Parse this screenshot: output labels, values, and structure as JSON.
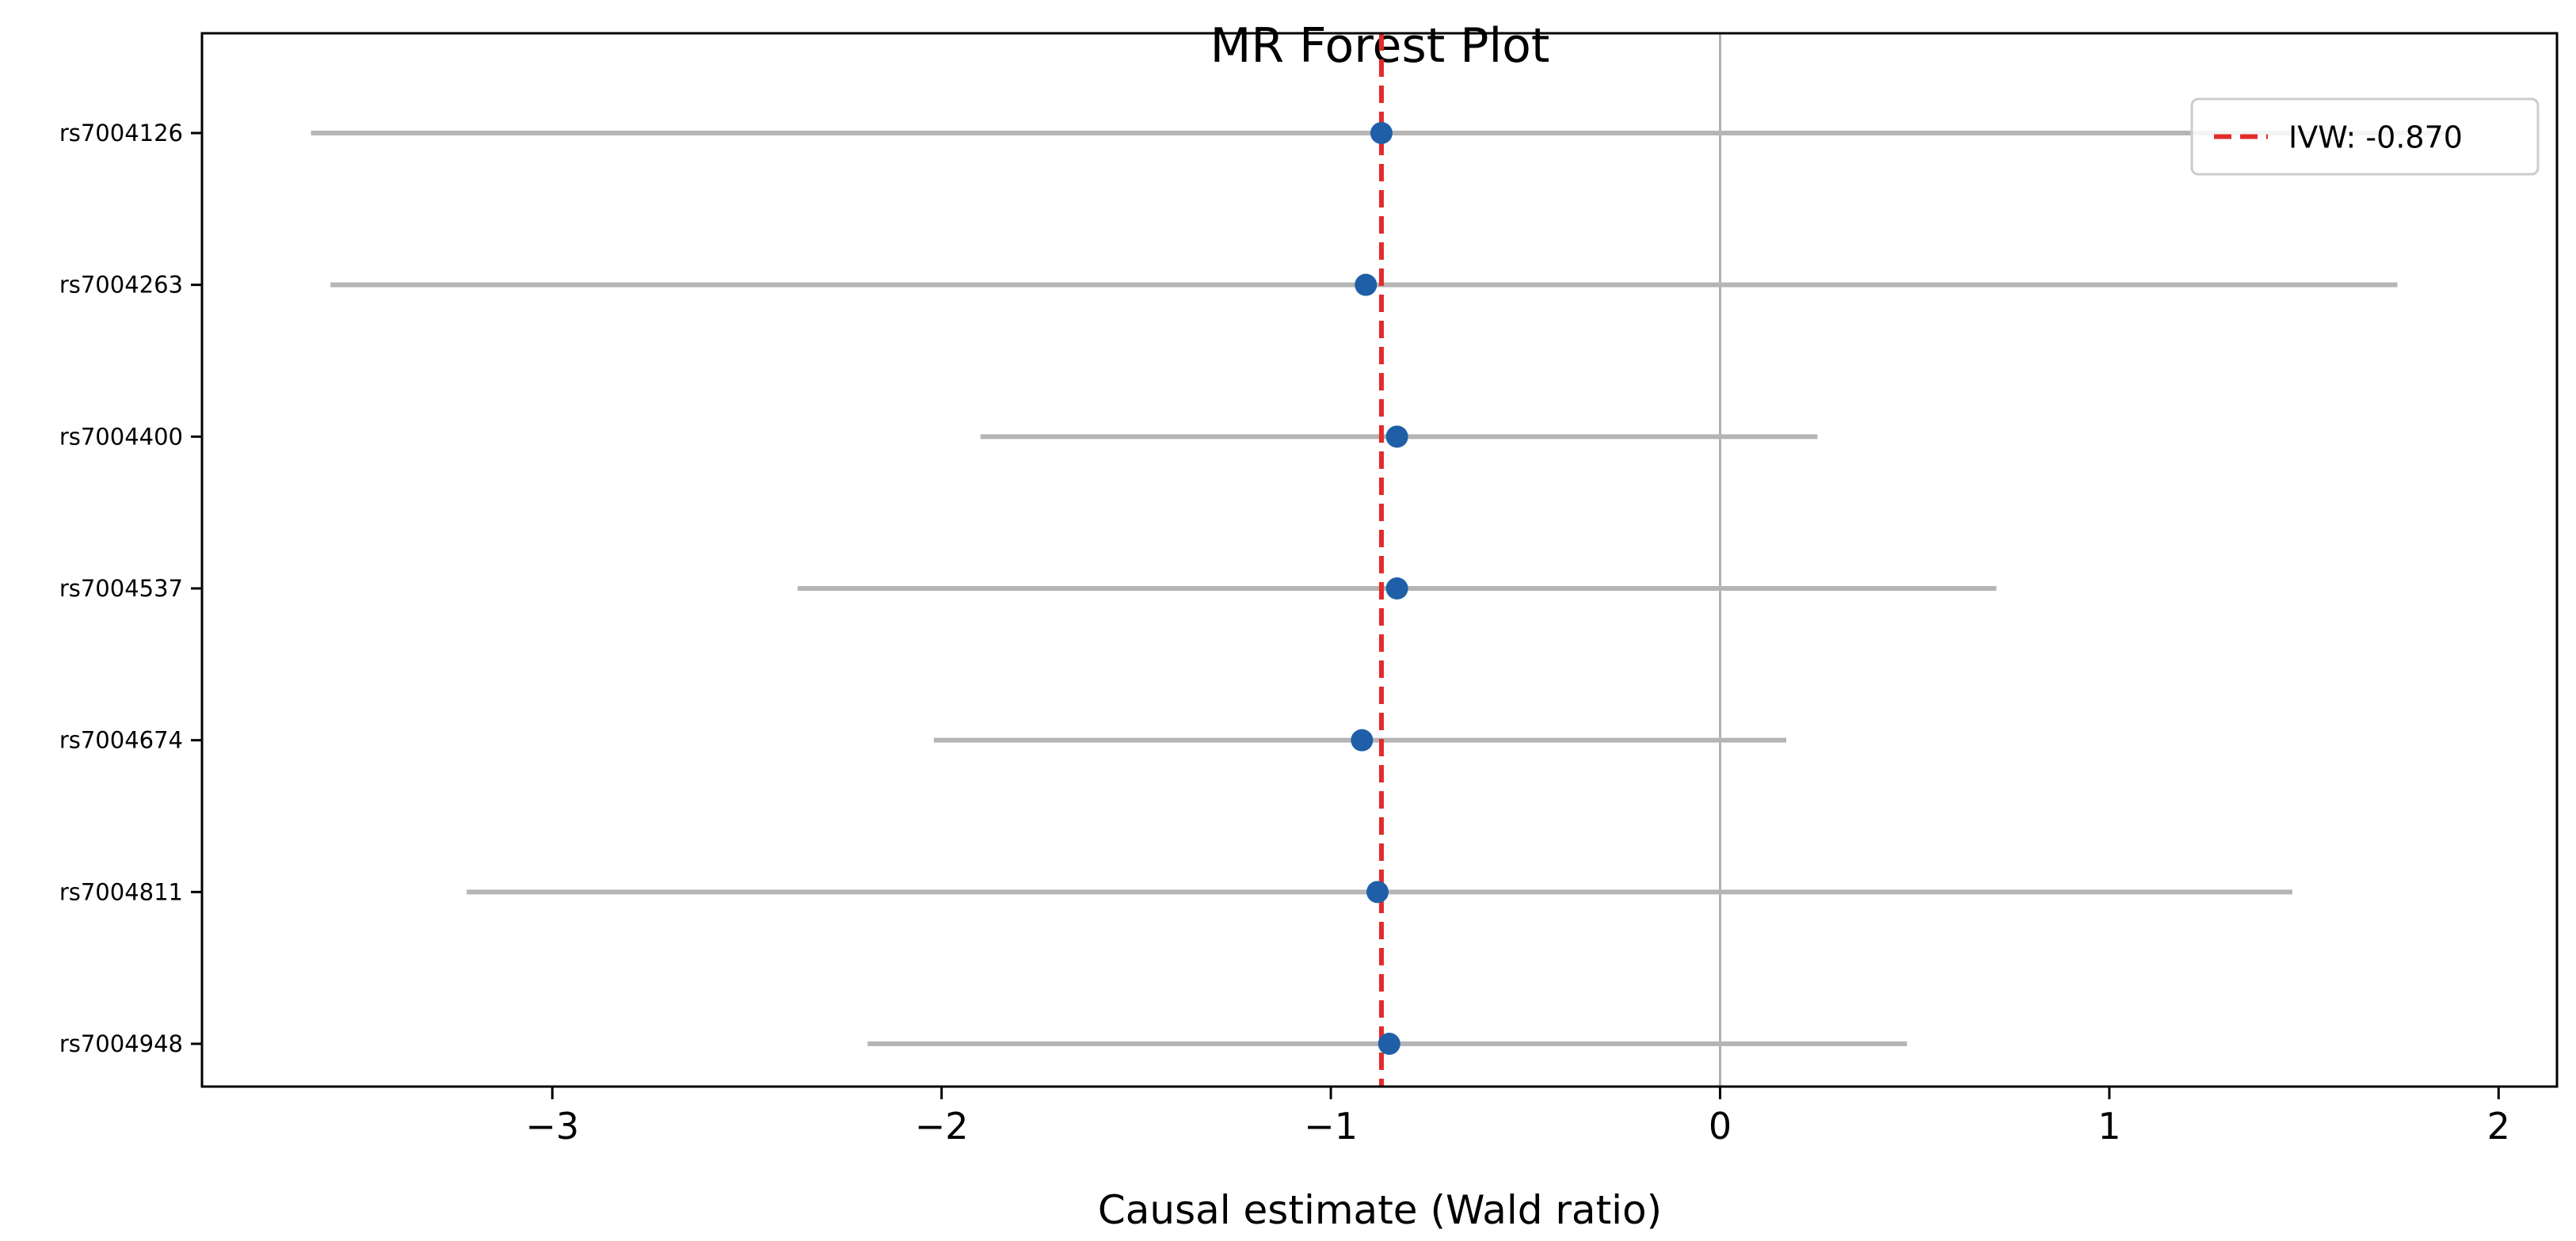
{
  "chart_data": {
    "type": "scatter",
    "title": "MR Forest Plot",
    "xlabel": "Causal estimate (Wald ratio)",
    "ylabel": "",
    "xlim": [
      -3.9,
      2.15
    ],
    "xticks": [
      -3,
      -2,
      -1,
      0,
      1,
      2
    ],
    "xtick_labels": [
      "−3",
      "−2",
      "−1",
      "0",
      "1",
      "2"
    ],
    "grid": false,
    "legend": {
      "position": "top-right",
      "entries": [
        "IVW: -0.870"
      ]
    },
    "reference_line": {
      "x": 0,
      "color": "#b0b0b0"
    },
    "ivw_line": {
      "x": -0.87,
      "label": "IVW: -0.870",
      "color": "#e32b2b",
      "style": "dashed"
    },
    "point_color": "#1f5fa8",
    "ci_color": "#b5b5b5",
    "snps": [
      {
        "name": "rs7004126",
        "estimate": -0.87,
        "ci_low": -3.62,
        "ci_high": 1.88
      },
      {
        "name": "rs7004263",
        "estimate": -0.91,
        "ci_low": -3.57,
        "ci_high": 1.74
      },
      {
        "name": "rs7004400",
        "estimate": -0.83,
        "ci_low": -1.9,
        "ci_high": 0.25
      },
      {
        "name": "rs7004537",
        "estimate": -0.83,
        "ci_low": -2.37,
        "ci_high": 0.71
      },
      {
        "name": "rs7004674",
        "estimate": -0.92,
        "ci_low": -2.02,
        "ci_high": 0.17
      },
      {
        "name": "rs7004811",
        "estimate": -0.88,
        "ci_low": -3.22,
        "ci_high": 1.47
      },
      {
        "name": "rs7004948",
        "estimate": -0.85,
        "ci_low": -2.19,
        "ci_high": 0.48
      }
    ]
  }
}
